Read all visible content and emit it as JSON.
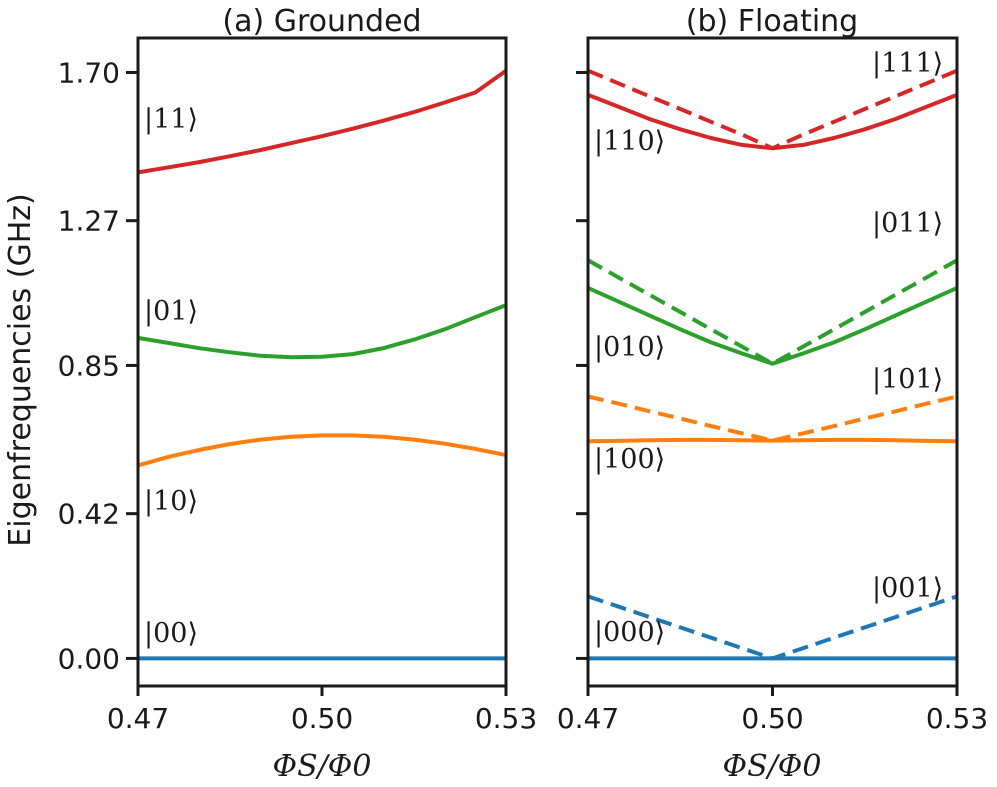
{
  "chart_data": [
    {
      "type": "line",
      "title": "(a) Grounded",
      "ylabel": "Eigenfrequencies (GHz)",
      "xlabel": "ΦS/Φ0",
      "xlim": [
        0.47,
        0.53
      ],
      "ylim": [
        -0.08,
        1.8
      ],
      "xticks": [
        "0.47",
        "0.50",
        "0.53"
      ],
      "yticks": [
        "0.00",
        "0.42",
        "0.85",
        "1.27",
        "1.70"
      ],
      "x": [
        0.47,
        0.475,
        0.48,
        0.485,
        0.49,
        0.495,
        0.5,
        0.505,
        0.51,
        0.515,
        0.52,
        0.525,
        0.53
      ],
      "series": [
        {
          "name": "|00⟩",
          "color": "#1f77b4",
          "dashed": false,
          "values": [
            0.0,
            0.0,
            0.0,
            0.0,
            0.0,
            0.0,
            0.0,
            0.0,
            0.0,
            0.0,
            0.0,
            0.0,
            0.0
          ]
        },
        {
          "name": "|10⟩",
          "color": "#ff7f0e",
          "dashed": false,
          "values": [
            0.56,
            0.585,
            0.605,
            0.622,
            0.635,
            0.643,
            0.647,
            0.647,
            0.643,
            0.635,
            0.623,
            0.608,
            0.59
          ]
        },
        {
          "name": "|01⟩",
          "color": "#2ca02c",
          "dashed": false,
          "values": [
            0.93,
            0.915,
            0.9,
            0.888,
            0.878,
            0.874,
            0.875,
            0.883,
            0.9,
            0.925,
            0.955,
            0.99,
            1.025
          ]
        },
        {
          "name": "|11⟩",
          "color": "#d62728",
          "dashed": false,
          "values": [
            1.41,
            1.425,
            1.44,
            1.457,
            1.475,
            1.495,
            1.515,
            1.537,
            1.56,
            1.585,
            1.613,
            1.642,
            1.705
          ]
        }
      ],
      "annotations": [
        "|00⟩",
        "|10⟩",
        "|01⟩",
        "|11⟩"
      ]
    },
    {
      "type": "line",
      "title": "(b) Floating",
      "xlabel": "ΦS/Φ0",
      "xlim": [
        0.47,
        0.53
      ],
      "ylim": [
        -0.08,
        1.8
      ],
      "xticks": [
        "0.47",
        "0.50",
        "0.53"
      ],
      "x": [
        0.47,
        0.475,
        0.48,
        0.485,
        0.49,
        0.495,
        0.5,
        0.505,
        0.51,
        0.515,
        0.52,
        0.525,
        0.53
      ],
      "series": [
        {
          "name": "|000⟩",
          "color": "#1f77b4",
          "dashed": false,
          "values": [
            0.0,
            0.0,
            0.0,
            0.0,
            0.0,
            0.0,
            0.0,
            0.0,
            0.0,
            0.0,
            0.0,
            0.0,
            0.0
          ]
        },
        {
          "name": "|001⟩",
          "color": "#1f77b4",
          "dashed": true,
          "values": [
            0.18,
            0.15,
            0.12,
            0.09,
            0.06,
            0.03,
            0.0,
            0.03,
            0.06,
            0.09,
            0.12,
            0.15,
            0.18
          ]
        },
        {
          "name": "|100⟩",
          "color": "#ff7f0e",
          "dashed": false,
          "values": [
            0.63,
            0.631,
            0.633,
            0.634,
            0.634,
            0.633,
            0.632,
            0.633,
            0.634,
            0.634,
            0.633,
            0.631,
            0.63
          ]
        },
        {
          "name": "|101⟩",
          "color": "#ff7f0e",
          "dashed": true,
          "values": [
            0.76,
            0.739,
            0.717,
            0.696,
            0.674,
            0.653,
            0.632,
            0.653,
            0.674,
            0.696,
            0.717,
            0.739,
            0.76
          ]
        },
        {
          "name": "|010⟩",
          "color": "#2ca02c",
          "dashed": false,
          "values": [
            1.075,
            1.035,
            0.995,
            0.955,
            0.917,
            0.885,
            0.855,
            0.885,
            0.917,
            0.955,
            0.995,
            1.035,
            1.075
          ]
        },
        {
          "name": "|011⟩",
          "color": "#2ca02c",
          "dashed": true,
          "values": [
            1.155,
            1.105,
            1.055,
            1.005,
            0.955,
            0.905,
            0.855,
            0.905,
            0.955,
            1.005,
            1.055,
            1.105,
            1.155
          ]
        },
        {
          "name": "|110⟩",
          "color": "#d62728",
          "dashed": false,
          "values": [
            1.635,
            1.6,
            1.565,
            1.535,
            1.51,
            1.49,
            1.48,
            1.49,
            1.51,
            1.535,
            1.565,
            1.6,
            1.635
          ]
        },
        {
          "name": "|111⟩",
          "color": "#d62728",
          "dashed": true,
          "values": [
            1.705,
            1.668,
            1.631,
            1.594,
            1.557,
            1.52,
            1.48,
            1.52,
            1.557,
            1.594,
            1.631,
            1.668,
            1.705
          ]
        }
      ],
      "annotations": [
        "|000⟩",
        "|001⟩",
        "|100⟩",
        "|101⟩",
        "|010⟩",
        "|011⟩",
        "|110⟩",
        "|111⟩"
      ]
    }
  ]
}
